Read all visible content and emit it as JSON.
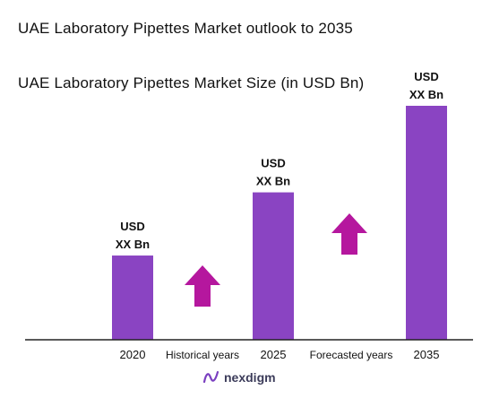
{
  "title": "UAE Laboratory Pipettes Market outlook to 2035",
  "logo_text": "nexdigm",
  "colors": {
    "bar": "#8a44c2",
    "arrow": "#b5179e",
    "axis": "#222222"
  },
  "chart_data": {
    "type": "bar",
    "title": "UAE Laboratory Pipettes Market Size (in USD Bn)",
    "categories": [
      "2020",
      "2025",
      "2035"
    ],
    "relative_heights": [
      0.36,
      0.63,
      1.0
    ],
    "value_labels": [
      [
        "USD",
        "XX Bn"
      ],
      [
        "USD",
        "XX Bn"
      ],
      [
        "USD",
        "XX Bn"
      ]
    ],
    "periods": [
      "Historical years",
      "Forecasted years"
    ],
    "growth_arrows": 2
  }
}
